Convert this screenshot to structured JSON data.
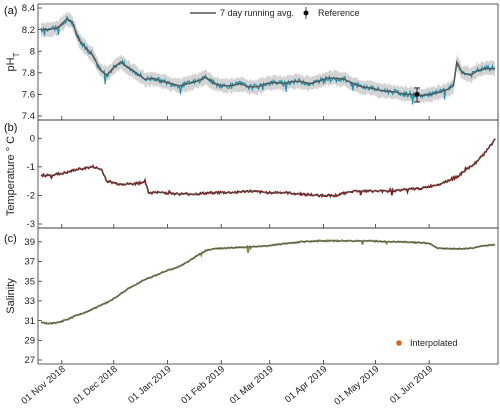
{
  "chart_data": [
    {
      "panel": "(a)",
      "type": "line",
      "ylabel": "pH",
      "ylabel_sub": "T",
      "ylim": [
        7.4,
        8.4
      ],
      "yticks": [
        7.4,
        7.6,
        7.8,
        8,
        8.2,
        8.4
      ],
      "x_range_days": [
        0,
        262
      ],
      "colors": {
        "series": "#1b8fa8",
        "band": "#cfcfcf",
        "avg": "#555555",
        "ref": "#111111"
      },
      "legend": {
        "avg_label": "7 day running avg.",
        "ref_label": "Reference",
        "placement": "top-right"
      },
      "series": [
        {
          "name": "7 day running avg.",
          "points": [
            [
              0,
              8.2
            ],
            [
              5,
              8.2
            ],
            [
              10,
              8.22
            ],
            [
              15,
              8.3
            ],
            [
              18,
              8.27
            ],
            [
              22,
              8.1
            ],
            [
              26,
              8.03
            ],
            [
              30,
              7.96
            ],
            [
              34,
              7.83
            ],
            [
              38,
              7.78
            ],
            [
              42,
              7.85
            ],
            [
              46,
              7.9
            ],
            [
              50,
              7.85
            ],
            [
              55,
              7.8
            ],
            [
              60,
              7.74
            ],
            [
              65,
              7.75
            ],
            [
              70,
              7.72
            ],
            [
              75,
              7.7
            ],
            [
              80,
              7.68
            ],
            [
              85,
              7.7
            ],
            [
              90,
              7.72
            ],
            [
              95,
              7.76
            ],
            [
              100,
              7.7
            ],
            [
              105,
              7.68
            ],
            [
              110,
              7.68
            ],
            [
              115,
              7.7
            ],
            [
              120,
              7.67
            ],
            [
              125,
              7.67
            ],
            [
              130,
              7.7
            ],
            [
              135,
              7.71
            ],
            [
              140,
              7.7
            ],
            [
              145,
              7.72
            ],
            [
              150,
              7.72
            ],
            [
              155,
              7.7
            ],
            [
              160,
              7.72
            ],
            [
              165,
              7.75
            ],
            [
              170,
              7.75
            ],
            [
              175,
              7.74
            ],
            [
              180,
              7.7
            ],
            [
              185,
              7.67
            ],
            [
              190,
              7.66
            ],
            [
              195,
              7.64
            ],
            [
              200,
              7.63
            ],
            [
              205,
              7.62
            ],
            [
              210,
              7.6
            ],
            [
              215,
              7.6
            ],
            [
              220,
              7.59
            ],
            [
              225,
              7.6
            ],
            [
              230,
              7.62
            ],
            [
              235,
              7.65
            ],
            [
              238,
              7.68
            ],
            [
              240,
              7.9
            ],
            [
              243,
              7.8
            ],
            [
              248,
              7.78
            ],
            [
              252,
              7.82
            ],
            [
              257,
              7.84
            ],
            [
              262,
              7.84
            ]
          ]
        }
      ],
      "reference": {
        "day": 217,
        "value": 7.6,
        "err_lo": 7.53,
        "err_hi": 7.66
      }
    },
    {
      "panel": "(b)",
      "type": "line",
      "ylabel": "Temperature ° C",
      "ylim": [
        -3,
        0.5
      ],
      "yticks": [
        -3,
        -2,
        -1,
        0
      ],
      "x_range_days": [
        0,
        262
      ],
      "colors": {
        "series": "#8b1c1c",
        "avg": "#4a4a4a"
      },
      "series": [
        {
          "name": "Temperature",
          "points": [
            [
              0,
              -1.3
            ],
            [
              5,
              -1.3
            ],
            [
              10,
              -1.25
            ],
            [
              15,
              -1.2
            ],
            [
              20,
              -1.1
            ],
            [
              25,
              -1.05
            ],
            [
              30,
              -1.0
            ],
            [
              35,
              -1.1
            ],
            [
              38,
              -1.5
            ],
            [
              45,
              -1.6
            ],
            [
              55,
              -1.6
            ],
            [
              60,
              -1.5
            ],
            [
              62,
              -1.9
            ],
            [
              70,
              -1.9
            ],
            [
              80,
              -1.95
            ],
            [
              90,
              -1.95
            ],
            [
              100,
              -1.9
            ],
            [
              110,
              -1.9
            ],
            [
              120,
              -1.85
            ],
            [
              130,
              -1.9
            ],
            [
              140,
              -1.9
            ],
            [
              150,
              -1.95
            ],
            [
              160,
              -2.0
            ],
            [
              170,
              -2.0
            ],
            [
              180,
              -1.85
            ],
            [
              190,
              -1.85
            ],
            [
              200,
              -1.85
            ],
            [
              210,
              -1.8
            ],
            [
              220,
              -1.75
            ],
            [
              230,
              -1.6
            ],
            [
              240,
              -1.35
            ],
            [
              250,
              -0.9
            ],
            [
              255,
              -0.6
            ],
            [
              260,
              -0.2
            ],
            [
              262,
              -0.05
            ]
          ]
        }
      ]
    },
    {
      "panel": "(c)",
      "type": "line",
      "ylabel": "Salinity",
      "ylim": [
        27,
        40
      ],
      "yticks": [
        27,
        29,
        31,
        33,
        35,
        37,
        39
      ],
      "x_range_days": [
        0,
        262
      ],
      "xtick_labels": [
        "01 Nov 2018",
        "01 Dec 2018",
        "01 Jan 2019",
        "01 Feb 2019",
        "01 Mar 2019",
        "01 Apr 2019",
        "01 May 2019",
        "01 Jun 2019"
      ],
      "xtick_days": [
        12,
        42,
        73,
        104,
        132,
        163,
        193,
        224
      ],
      "colors": {
        "series": "#7f8a4a",
        "avg": "#555555",
        "interp": "#d2691e"
      },
      "legend": {
        "interp_label": "Interpolated",
        "placement": "bottom-right"
      },
      "series": [
        {
          "name": "Salinity",
          "points": [
            [
              0,
              30.8
            ],
            [
              5,
              30.7
            ],
            [
              10,
              30.8
            ],
            [
              15,
              31.1
            ],
            [
              20,
              31.5
            ],
            [
              25,
              31.8
            ],
            [
              30,
              32.2
            ],
            [
              35,
              32.6
            ],
            [
              40,
              33.0
            ],
            [
              45,
              33.6
            ],
            [
              50,
              34.2
            ],
            [
              55,
              34.7
            ],
            [
              60,
              35.2
            ],
            [
              65,
              35.5
            ],
            [
              70,
              35.9
            ],
            [
              75,
              36.2
            ],
            [
              80,
              36.5
            ],
            [
              85,
              37.0
            ],
            [
              90,
              37.6
            ],
            [
              95,
              38.1
            ],
            [
              100,
              38.3
            ],
            [
              110,
              38.4
            ],
            [
              120,
              38.5
            ],
            [
              130,
              38.6
            ],
            [
              140,
              38.8
            ],
            [
              150,
              39.0
            ],
            [
              160,
              39.1
            ],
            [
              170,
              39.1
            ],
            [
              180,
              39.1
            ],
            [
              190,
              39.1
            ],
            [
              200,
              39.0
            ],
            [
              210,
              39.0
            ],
            [
              220,
              38.9
            ],
            [
              225,
              38.8
            ],
            [
              228,
              38.4
            ],
            [
              235,
              38.3
            ],
            [
              245,
              38.3
            ],
            [
              250,
              38.4
            ],
            [
              255,
              38.6
            ],
            [
              262,
              38.7
            ]
          ]
        }
      ]
    }
  ]
}
